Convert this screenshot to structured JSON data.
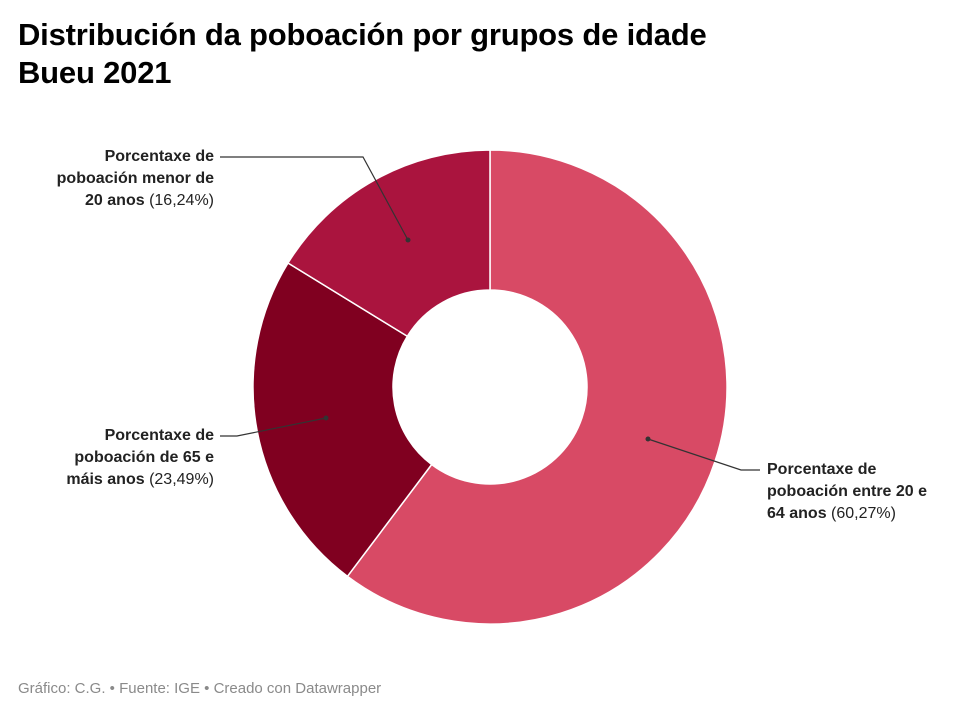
{
  "title": {
    "line1": "Distribución da poboación por grupos de idade",
    "line2": "Bueu 2021"
  },
  "chart_data": {
    "type": "pie",
    "donut": true,
    "slices": [
      {
        "label": "Porcentaxe de poboación entre 20 e 64 anos",
        "value": 60.27,
        "value_label": "(60,27%)",
        "color": "#d84a65"
      },
      {
        "label": "Porcentaxe de poboación de 65 e máis anos",
        "value": 23.49,
        "value_label": "(23,49%)",
        "color": "#800020"
      },
      {
        "label": "Porcentaxe de poboación menor de 20 anos",
        "value": 16.24,
        "value_label": "(16,24%)",
        "color": "#aa143e"
      }
    ]
  },
  "labels": {
    "young": {
      "l1": "Porcentaxe de",
      "l2": "poboación menor de",
      "l3": "20 anos",
      "pct": "(16,24%)"
    },
    "old": {
      "l1": "Porcentaxe de",
      "l2": "poboación de 65 e",
      "l3": "máis anos",
      "pct": "(23,49%)"
    },
    "adult": {
      "l1": "Porcentaxe de",
      "l2": "poboación entre 20 e",
      "l3": "64 anos",
      "pct": "(60,27%)"
    }
  },
  "footer": "Gráfico: C.G. • Fuente: IGE • Creado con Datawrapper"
}
